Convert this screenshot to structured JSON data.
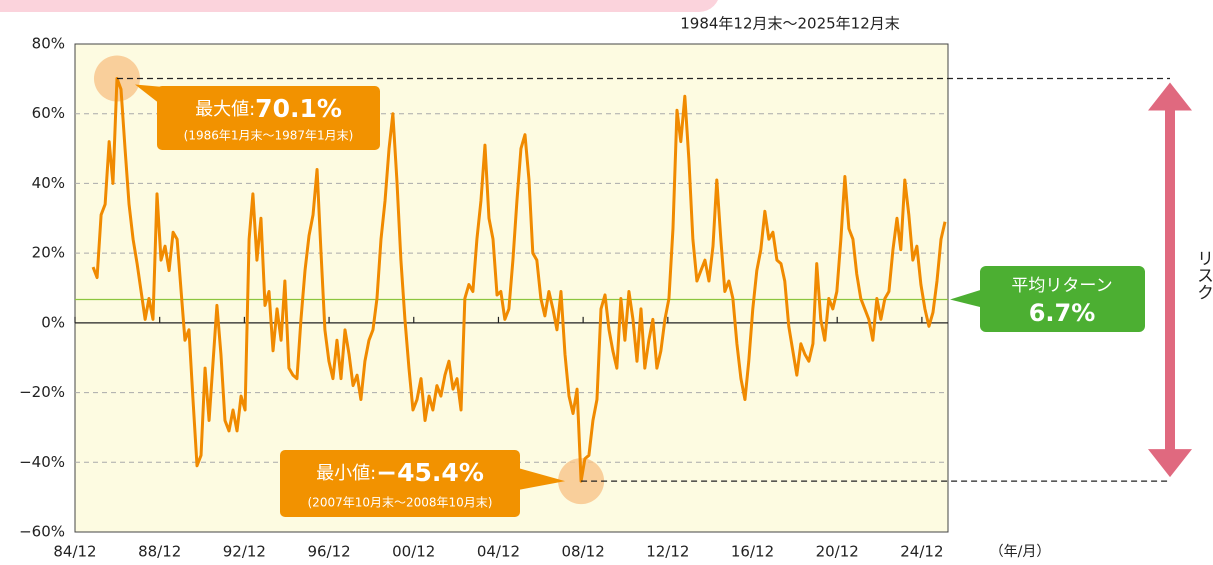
{
  "chart_data": {
    "type": "line",
    "subtitle": "1984年12月末～2025年12月末",
    "x_unit": "（年/月）",
    "color": "#f08a00",
    "grid": true,
    "x": [
      1985.77,
      1985.96,
      1986.15,
      1986.34,
      1986.53,
      1986.71,
      1986.9,
      1987.09,
      1987.28,
      1987.47,
      1987.66,
      1987.85,
      1988.04,
      1988.23,
      1988.41,
      1988.6,
      1988.79,
      1988.98,
      1989.17,
      1989.36,
      1989.55,
      1989.74,
      1989.93,
      1990.11,
      1990.3,
      1990.49,
      1990.68,
      1990.87,
      1991.06,
      1991.25,
      1991.44,
      1991.62,
      1991.81,
      1992.0,
      1992.19,
      1992.38,
      1992.57,
      1992.76,
      1992.95,
      1993.14,
      1993.32,
      1993.51,
      1993.7,
      1993.89,
      1994.08,
      1994.27,
      1994.46,
      1994.65,
      1994.83,
      1995.02,
      1995.21,
      1995.4,
      1995.59,
      1995.78,
      1995.97,
      1996.16,
      1996.35,
      1996.53,
      1996.72,
      1996.91,
      1997.1,
      1997.29,
      1997.48,
      1997.67,
      1997.86,
      1998.05,
      1998.24,
      1998.42,
      1998.61,
      1998.8,
      1998.99,
      1999.18,
      1999.37,
      1999.56,
      1999.75,
      1999.93,
      2000.12,
      2000.31,
      2000.5,
      2000.69,
      2000.88,
      2001.07,
      2001.26,
      2001.45,
      2001.64,
      2001.82,
      2002.01,
      2002.2,
      2002.39,
      2002.58,
      2002.77,
      2002.96,
      2003.15,
      2003.33,
      2003.52,
      2003.71,
      2003.9,
      2004.09,
      2004.28,
      2004.47,
      2004.66,
      2004.85,
      2005.03,
      2005.22,
      2005.41,
      2005.6,
      2005.79,
      2005.98,
      2006.17,
      2006.36,
      2006.54,
      2006.73,
      2006.92,
      2007.11,
      2007.3,
      2007.49,
      2007.68,
      2007.87,
      2008.06,
      2008.25,
      2008.44,
      2008.63,
      2008.82,
      2009.0,
      2009.19,
      2009.38,
      2009.57,
      2009.76,
      2009.95,
      2010.14,
      2010.32,
      2010.51,
      2010.7,
      2010.89,
      2011.08,
      2011.27,
      2011.46,
      2011.65,
      2011.83,
      2012.02,
      2012.21,
      2012.4,
      2012.59,
      2012.78,
      2012.97,
      2013.16,
      2013.35,
      2013.53,
      2013.72,
      2013.91,
      2014.1,
      2014.29,
      2014.48,
      2014.67,
      2014.86,
      2015.05,
      2015.23,
      2015.42,
      2015.61,
      2015.8,
      2015.99,
      2016.18,
      2016.37,
      2016.56,
      2016.74,
      2016.93,
      2017.12,
      2017.31,
      2017.5,
      2017.69,
      2017.88,
      2018.07,
      2018.26,
      2018.44,
      2018.63,
      2018.82,
      2019.01,
      2019.2,
      2019.39,
      2019.58,
      2019.77,
      2019.95,
      2020.14,
      2020.33,
      2020.52,
      2020.71,
      2020.9,
      2021.09,
      2021.28,
      2021.47,
      2021.66,
      2021.84,
      2022.03,
      2022.22,
      2022.41,
      2022.6,
      2022.79,
      2022.98,
      2023.17,
      2023.36,
      2023.55,
      2023.74,
      2023.92,
      2024.11,
      2024.3,
      2024.49,
      2024.68,
      2024.87,
      2025.06,
      2025.25,
      2025.44,
      2025.63,
      2025.82,
      2026.01
    ],
    "values": [
      16,
      13,
      31,
      34,
      52,
      40,
      70.1,
      67,
      50,
      34,
      24,
      17,
      9,
      1,
      7,
      1,
      37,
      18,
      22,
      15,
      26,
      24,
      9,
      -5,
      -2,
      -22,
      -41,
      -38,
      -13,
      -28,
      -11,
      5,
      -9,
      -28,
      -31,
      -25,
      -31,
      -21,
      -25,
      24,
      37,
      18,
      30,
      5,
      9,
      -8,
      4,
      -5,
      12,
      -13,
      -15,
      -16,
      1,
      15,
      25,
      31,
      44,
      21,
      -2,
      -11,
      -16,
      -5,
      -16,
      -2,
      -9,
      -18,
      -15,
      -22,
      -11,
      -5,
      -2,
      7,
      24,
      35,
      50,
      60,
      41,
      18,
      1,
      -13,
      -25,
      -22,
      -16,
      -28,
      -21,
      -25,
      -18,
      -21,
      -15,
      -11,
      -19,
      -16,
      -25,
      7,
      11,
      9,
      24,
      35,
      51,
      30,
      24,
      8,
      9,
      1,
      4,
      18,
      35,
      50,
      54,
      41,
      20,
      18,
      7,
      2,
      9,
      4,
      -2,
      9,
      -9,
      -21,
      -26,
      -19,
      -45.4,
      -39,
      -38,
      -28,
      -22,
      4,
      8,
      -2,
      -8,
      -13,
      7,
      -5,
      9,
      1,
      -11,
      4,
      -13,
      -5,
      1,
      -13,
      -8,
      1,
      7,
      27,
      61,
      52,
      65,
      47,
      24,
      12,
      15,
      18,
      12,
      22,
      41,
      24,
      9,
      12,
      7,
      -6,
      -16,
      -22,
      -11,
      4,
      15,
      21,
      32,
      24,
      26,
      18,
      17,
      12,
      -1,
      -8,
      -15,
      -6,
      -9,
      -11,
      -6,
      17,
      1,
      -5,
      7,
      4,
      9,
      24,
      42,
      27,
      24,
      14,
      7,
      4,
      1,
      -5,
      7,
      1,
      7,
      9,
      21,
      30,
      21,
      41,
      31,
      18,
      22,
      11,
      4,
      -1,
      3,
      12,
      24,
      29
    ],
    "xlim": [
      1984.917,
      2026.15
    ],
    "xticks": [
      {
        "value": 1984.917,
        "label": "84/12"
      },
      {
        "value": 1988.917,
        "label": "88/12"
      },
      {
        "value": 1992.917,
        "label": "92/12"
      },
      {
        "value": 1996.917,
        "label": "96/12"
      },
      {
        "value": 2000.917,
        "label": "00/12"
      },
      {
        "value": 2004.917,
        "label": "04/12"
      },
      {
        "value": 2008.917,
        "label": "08/12"
      },
      {
        "value": 2012.917,
        "label": "12/12"
      },
      {
        "value": 2016.917,
        "label": "16/12"
      },
      {
        "value": 2020.917,
        "label": "20/12"
      },
      {
        "value": 2024.917,
        "label": "24/12"
      }
    ],
    "ylim": [
      -60,
      80
    ],
    "yticks": [
      {
        "value": -60,
        "label": "−60%"
      },
      {
        "value": -40,
        "label": "−40%"
      },
      {
        "value": -20,
        "label": "−20%"
      },
      {
        "value": 0,
        "label": "0%"
      },
      {
        "value": 20,
        "label": "20%"
      },
      {
        "value": 40,
        "label": "40%"
      },
      {
        "value": 60,
        "label": "60%"
      },
      {
        "value": 80,
        "label": "80%"
      }
    ],
    "max_annotation": {
      "index": 6,
      "label": "最大値:",
      "value_label": "70.1%",
      "period": "(1986年1月末～1987年1月末)"
    },
    "min_annotation": {
      "index": 122,
      "label": "最小値:",
      "value_label": "−45.4%",
      "period": "(2007年10月末～2008年10月末)"
    },
    "average": {
      "label": "平均リターン",
      "value": 6.7,
      "value_label": "6.7%",
      "color": "#4caf32"
    },
    "risk_label": "リスク"
  }
}
